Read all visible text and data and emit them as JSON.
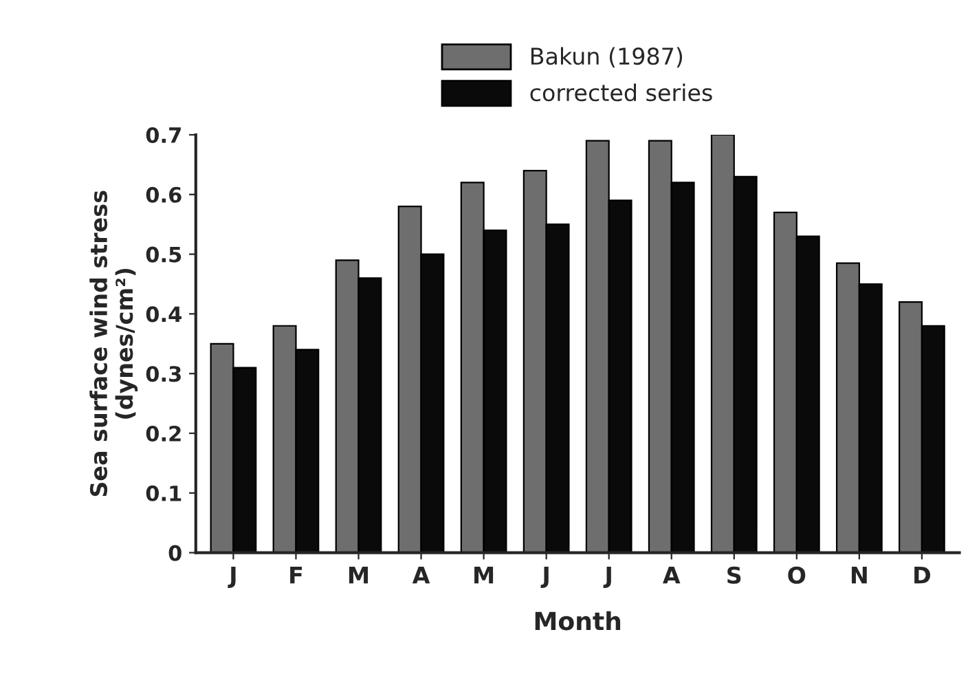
{
  "chart_data": {
    "type": "bar",
    "xlabel": "Month",
    "ylabel": "Sea surface wind stress\n(dynes/cm²)",
    "categories": [
      "J",
      "F",
      "M",
      "A",
      "M",
      "J",
      "J",
      "A",
      "S",
      "O",
      "N",
      "D"
    ],
    "series": [
      {
        "name": "Bakun (1987)",
        "color": "#6e6e6e",
        "values": [
          0.35,
          0.38,
          0.49,
          0.58,
          0.62,
          0.64,
          0.69,
          0.69,
          0.7,
          0.57,
          0.485,
          0.42
        ]
      },
      {
        "name": "corrected series",
        "color": "#0a0a0a",
        "values": [
          0.31,
          0.34,
          0.46,
          0.5,
          0.54,
          0.55,
          0.59,
          0.62,
          0.63,
          0.53,
          0.45,
          0.38
        ]
      }
    ],
    "ylim": [
      0,
      0.7
    ],
    "yticks": [
      0,
      0.1,
      0.2,
      0.3,
      0.4,
      0.5,
      0.6,
      0.7
    ],
    "grid": false,
    "legend": "top"
  }
}
